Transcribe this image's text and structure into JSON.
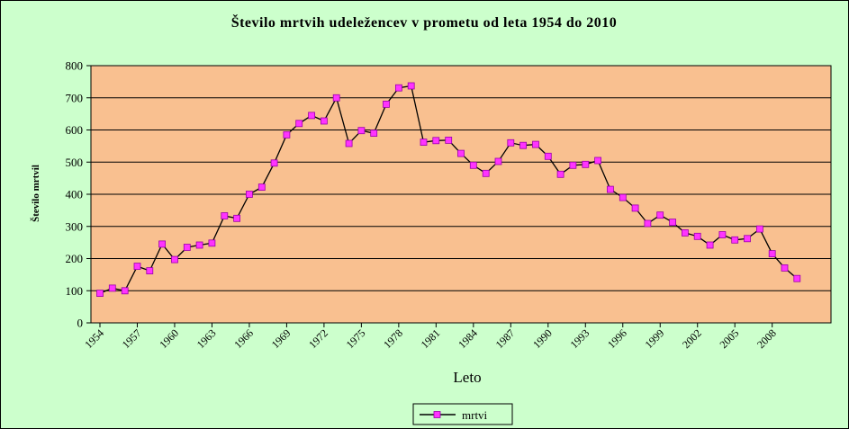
{
  "chart_data": {
    "type": "line",
    "title": "Število mrtvih udeležencev v prometu od leta 1954 do 2010",
    "xlabel": "Leto",
    "ylabel": "Število mrtvil",
    "ylim": [
      0,
      800
    ],
    "yticks": [
      "0",
      "100",
      "200",
      "300",
      "400",
      "500",
      "600",
      "700",
      "800"
    ],
    "xtick_labels": [
      "1954",
      "1957",
      "1960",
      "1963",
      "1966",
      "1969",
      "1972",
      "1975",
      "1978",
      "1981",
      "1984",
      "1987",
      "1990",
      "1993",
      "1996",
      "1999",
      "2002",
      "2005",
      "2008"
    ],
    "grid": true,
    "legend_position": "bottom",
    "colors": {
      "background": "#ccffcc",
      "plot_area": "#f9c090",
      "line": "#000000",
      "marker": "#ff33ff",
      "grid": "#000000"
    },
    "series": [
      {
        "name": "mrtvi",
        "x": [
          1954,
          1955,
          1956,
          1957,
          1958,
          1959,
          1960,
          1961,
          1962,
          1963,
          1964,
          1965,
          1966,
          1967,
          1968,
          1969,
          1970,
          1971,
          1972,
          1973,
          1974,
          1975,
          1976,
          1977,
          1978,
          1979,
          1980,
          1981,
          1982,
          1983,
          1984,
          1985,
          1986,
          1987,
          1988,
          1989,
          1990,
          1991,
          1992,
          1993,
          1994,
          1995,
          1996,
          1997,
          1998,
          1999,
          2000,
          2001,
          2002,
          2003,
          2004,
          2005,
          2006,
          2007,
          2008,
          2009,
          2010
        ],
        "values": [
          92,
          108,
          100,
          176,
          162,
          245,
          197,
          235,
          242,
          248,
          333,
          325,
          400,
          422,
          497,
          585,
          620,
          645,
          628,
          700,
          558,
          598,
          590,
          680,
          731,
          737,
          562,
          567,
          568,
          527,
          490,
          465,
          502,
          560,
          552,
          555,
          518,
          462,
          490,
          493,
          505,
          415,
          390,
          357,
          309,
          335,
          313,
          280,
          269,
          242,
          274,
          258,
          262,
          292,
          215,
          171,
          138
        ]
      }
    ]
  }
}
